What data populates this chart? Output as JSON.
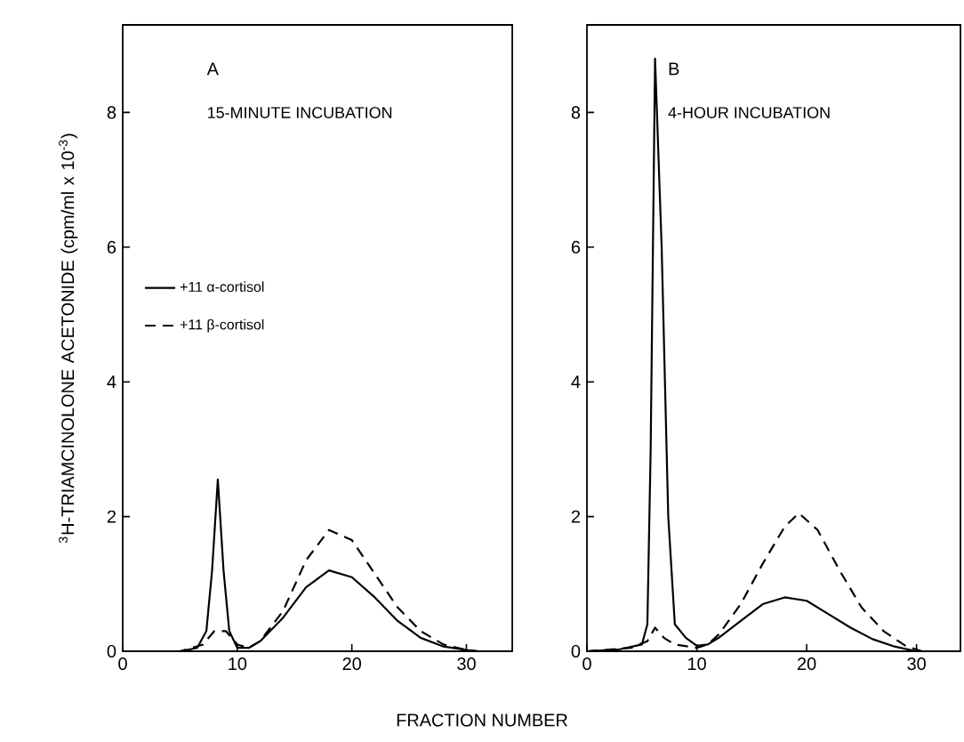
{
  "chart_data": [
    {
      "type": "line",
      "title": "A",
      "subtitle": "15-MINUTE INCUBATION",
      "xlabel": "FRACTION NUMBER",
      "ylabel": "$^{3}$H-TRIAMCINOLONE ACETONIDE (cpm/ml x 10$^{-3}$)",
      "xlim": [
        0,
        34
      ],
      "ylim": [
        0,
        9.3
      ],
      "xticks": [
        0,
        10,
        20,
        30
      ],
      "yticks": [
        0,
        2,
        4,
        6,
        8
      ],
      "legend": "left",
      "series": [
        {
          "name": "+11 α-cortisol",
          "color": "#000000",
          "line_style": "solid",
          "x": [
            0,
            5,
            6.5,
            7.3,
            7.8,
            8.3,
            8.8,
            9.3,
            10,
            11,
            12,
            14,
            16,
            18,
            20,
            22,
            24,
            26,
            28,
            30,
            31
          ],
          "values": [
            0,
            0,
            0.05,
            0.3,
            1.2,
            2.55,
            1.2,
            0.3,
            0.05,
            0.05,
            0.15,
            0.5,
            0.95,
            1.2,
            1.1,
            0.8,
            0.45,
            0.2,
            0.07,
            0.02,
            0
          ]
        },
        {
          "name": "+11 β-cortisol",
          "color": "#000000",
          "line_style": "dashed",
          "x": [
            0,
            5,
            7,
            8,
            9,
            10,
            11,
            12,
            14,
            16,
            18,
            20,
            22,
            24,
            26,
            28,
            30,
            31
          ],
          "values": [
            0,
            0,
            0.1,
            0.3,
            0.3,
            0.1,
            0.05,
            0.15,
            0.6,
            1.35,
            1.8,
            1.65,
            1.15,
            0.65,
            0.3,
            0.1,
            0.02,
            0
          ]
        }
      ]
    },
    {
      "type": "line",
      "title": "B",
      "subtitle": "4-HOUR INCUBATION",
      "xlim": [
        0,
        34
      ],
      "ylim": [
        0,
        9.3
      ],
      "xticks": [
        0,
        10,
        20,
        30
      ],
      "yticks": [
        0,
        2,
        4,
        6,
        8
      ],
      "series": [
        {
          "color": "#000000",
          "line_style": "solid",
          "x": [
            0,
            3,
            5,
            5.5,
            5.8,
            6.2,
            6.8,
            7.4,
            8,
            9,
            10,
            11,
            12,
            14,
            16,
            18,
            20,
            22,
            24,
            26,
            28,
            30
          ],
          "values": [
            0,
            0.03,
            0.1,
            0.4,
            3,
            8.8,
            6,
            2,
            0.4,
            0.2,
            0.08,
            0.1,
            0.2,
            0.45,
            0.7,
            0.8,
            0.75,
            0.55,
            0.35,
            0.18,
            0.07,
            0
          ]
        },
        {
          "color": "#000000",
          "line_style": "dashed",
          "x": [
            0,
            4,
            5.5,
            6.2,
            7,
            8,
            10,
            11,
            12,
            14,
            16,
            18,
            19.3,
            21,
            23,
            25,
            27,
            29,
            30.5
          ],
          "values": [
            0,
            0.05,
            0.15,
            0.35,
            0.2,
            0.1,
            0.05,
            0.1,
            0.25,
            0.7,
            1.3,
            1.85,
            2.05,
            1.8,
            1.2,
            0.65,
            0.3,
            0.08,
            0
          ]
        }
      ]
    }
  ]
}
